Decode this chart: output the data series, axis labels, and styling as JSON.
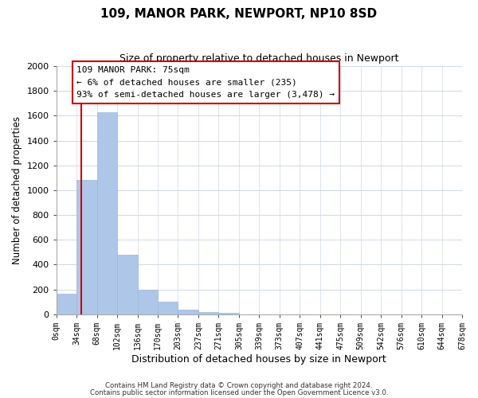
{
  "title": "109, MANOR PARK, NEWPORT, NP10 8SD",
  "subtitle": "Size of property relative to detached houses in Newport",
  "xlabel": "Distribution of detached houses by size in Newport",
  "ylabel": "Number of detached properties",
  "bar_color": "#aec6e8",
  "bar_edge_color": "#9ab8d8",
  "bin_labels": [
    "0sqm",
    "34sqm",
    "68sqm",
    "102sqm",
    "136sqm",
    "170sqm",
    "203sqm",
    "237sqm",
    "271sqm",
    "305sqm",
    "339sqm",
    "373sqm",
    "407sqm",
    "441sqm",
    "475sqm",
    "509sqm",
    "542sqm",
    "576sqm",
    "610sqm",
    "644sqm",
    "678sqm"
  ],
  "bar_values": [
    165,
    1085,
    1625,
    480,
    200,
    100,
    35,
    20,
    10,
    0,
    0,
    0,
    0,
    0,
    0,
    0,
    0,
    0,
    0,
    0
  ],
  "ylim": [
    0,
    2000
  ],
  "yticks": [
    0,
    200,
    400,
    600,
    800,
    1000,
    1200,
    1400,
    1600,
    1800,
    2000
  ],
  "vline_x": 1.21,
  "vline_color": "#cc0000",
  "annotation_text_line1": "109 MANOR PARK: 75sqm",
  "annotation_text_line2": "← 6% of detached houses are smaller (235)",
  "annotation_text_line3": "93% of semi-detached houses are larger (3,478) →",
  "footer1": "Contains HM Land Registry data © Crown copyright and database right 2024.",
  "footer2": "Contains public sector information licensed under the Open Government Licence v3.0.",
  "background_color": "#ffffff",
  "grid_color": "#d0d8e8"
}
